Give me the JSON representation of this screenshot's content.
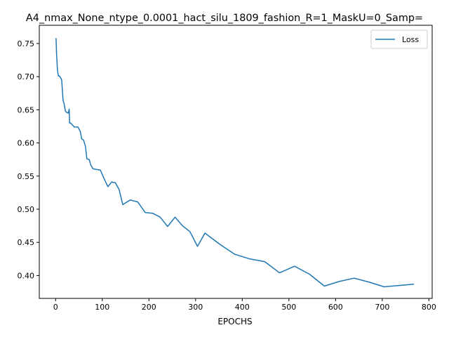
{
  "chart_data": {
    "type": "line",
    "title": "A4_nmax_None_ntype_0.0001_hact_silu_1809_fashion_R=1_MaskU=0_Samp=",
    "xlabel": "EPOCHS",
    "ylabel": "",
    "xlim": [
      -35,
      807
    ],
    "ylim": [
      0.3655,
      0.7775
    ],
    "xticks": [
      0,
      100,
      200,
      300,
      400,
      500,
      600,
      700,
      800
    ],
    "yticks": [
      0.4,
      0.45,
      0.5,
      0.55,
      0.6,
      0.65,
      0.7,
      0.75
    ],
    "grid": false,
    "legend_position": "top-right",
    "series": [
      {
        "name": "Loss",
        "color": "#1f77b4",
        "x": [
          1,
          2,
          4,
          6,
          8,
          11,
          13,
          16,
          18,
          21,
          24,
          27,
          29,
          30,
          32,
          35,
          40,
          45,
          48,
          53,
          56,
          60,
          64,
          67,
          72,
          75,
          80,
          88,
          96,
          104,
          112,
          120,
          128,
          136,
          144,
          160,
          176,
          192,
          208,
          224,
          240,
          256,
          272,
          288,
          304,
          320,
          352,
          384,
          416,
          448,
          480,
          512,
          544,
          576,
          608,
          640,
          672,
          704,
          736,
          768
        ],
        "y": [
          0.758,
          0.735,
          0.71,
          0.701,
          0.701,
          0.698,
          0.695,
          0.664,
          0.66,
          0.648,
          0.646,
          0.645,
          0.651,
          0.63,
          0.63,
          0.628,
          0.624,
          0.624,
          0.624,
          0.617,
          0.606,
          0.604,
          0.595,
          0.576,
          0.575,
          0.567,
          0.561,
          0.56,
          0.559,
          0.546,
          0.534,
          0.541,
          0.54,
          0.53,
          0.507,
          0.514,
          0.511,
          0.495,
          0.494,
          0.488,
          0.474,
          0.488,
          0.475,
          0.466,
          0.444,
          0.464,
          0.447,
          0.432,
          0.425,
          0.421,
          0.404,
          0.414,
          0.402,
          0.384,
          0.391,
          0.396,
          0.39,
          0.383,
          0.385,
          0.387
        ]
      }
    ]
  }
}
